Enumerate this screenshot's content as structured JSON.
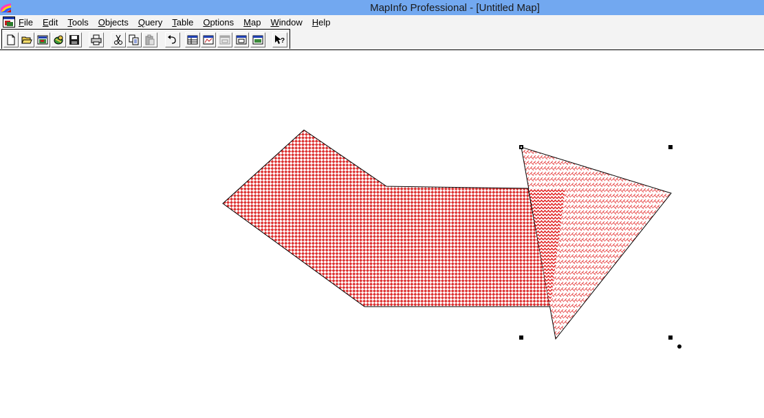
{
  "window": {
    "title": "MapInfo Professional - [Untitled Map]",
    "app_icon": "mapinfo-app-icon"
  },
  "menubar": {
    "doc_icon": "map-document-icon",
    "items": [
      {
        "pre": "",
        "u": "F",
        "post": "ile"
      },
      {
        "pre": "",
        "u": "E",
        "post": "dit"
      },
      {
        "pre": "",
        "u": "T",
        "post": "ools"
      },
      {
        "pre": "",
        "u": "O",
        "post": "bjects"
      },
      {
        "pre": "",
        "u": "Q",
        "post": "uery"
      },
      {
        "pre": "",
        "u": "T",
        "post": "able"
      },
      {
        "pre": "",
        "u": "O",
        "post": "ptions"
      },
      {
        "pre": "",
        "u": "M",
        "post": "ap"
      },
      {
        "pre": "",
        "u": "W",
        "post": "indow"
      },
      {
        "pre": "",
        "u": "H",
        "post": "elp"
      }
    ]
  },
  "toolbar": {
    "buttons": [
      "new-file-icon",
      "open-folder-icon",
      "open-workspace-icon",
      "open-dbms-icon",
      "save-icon",
      "print-icon",
      "cut-icon",
      "copy-icon",
      "paste-icon",
      "undo-icon",
      "new-browser-icon",
      "new-mapper-icon",
      "new-grapher-icon",
      "new-layout-icon",
      "redistricter-icon",
      "help-cursor-icon"
    ]
  },
  "map": {
    "fill_color_primary": "#dd3333",
    "fill_color_secondary": "#e84a4a",
    "stroke_color": "#000000",
    "handle_color": "#000000"
  }
}
